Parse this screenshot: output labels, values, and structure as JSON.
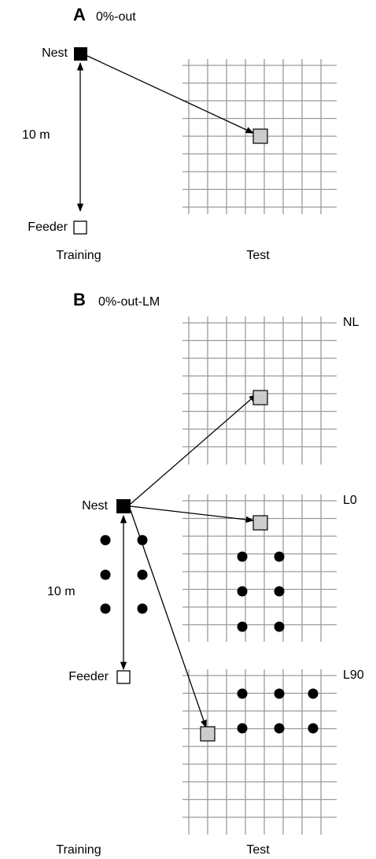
{
  "panels": [
    {
      "letter": "A",
      "condition": "0%-out",
      "nest": "Nest",
      "distance": "10 m",
      "feeder": "Feeder",
      "training": "Training",
      "test": "Test"
    },
    {
      "letter": "B",
      "condition": "0%-out-LM",
      "nest": "Nest",
      "distance": "10 m",
      "feeder": "Feeder",
      "training": "Training",
      "test": "Test",
      "tests": [
        "NL",
        "L0",
        "L90"
      ]
    }
  ]
}
